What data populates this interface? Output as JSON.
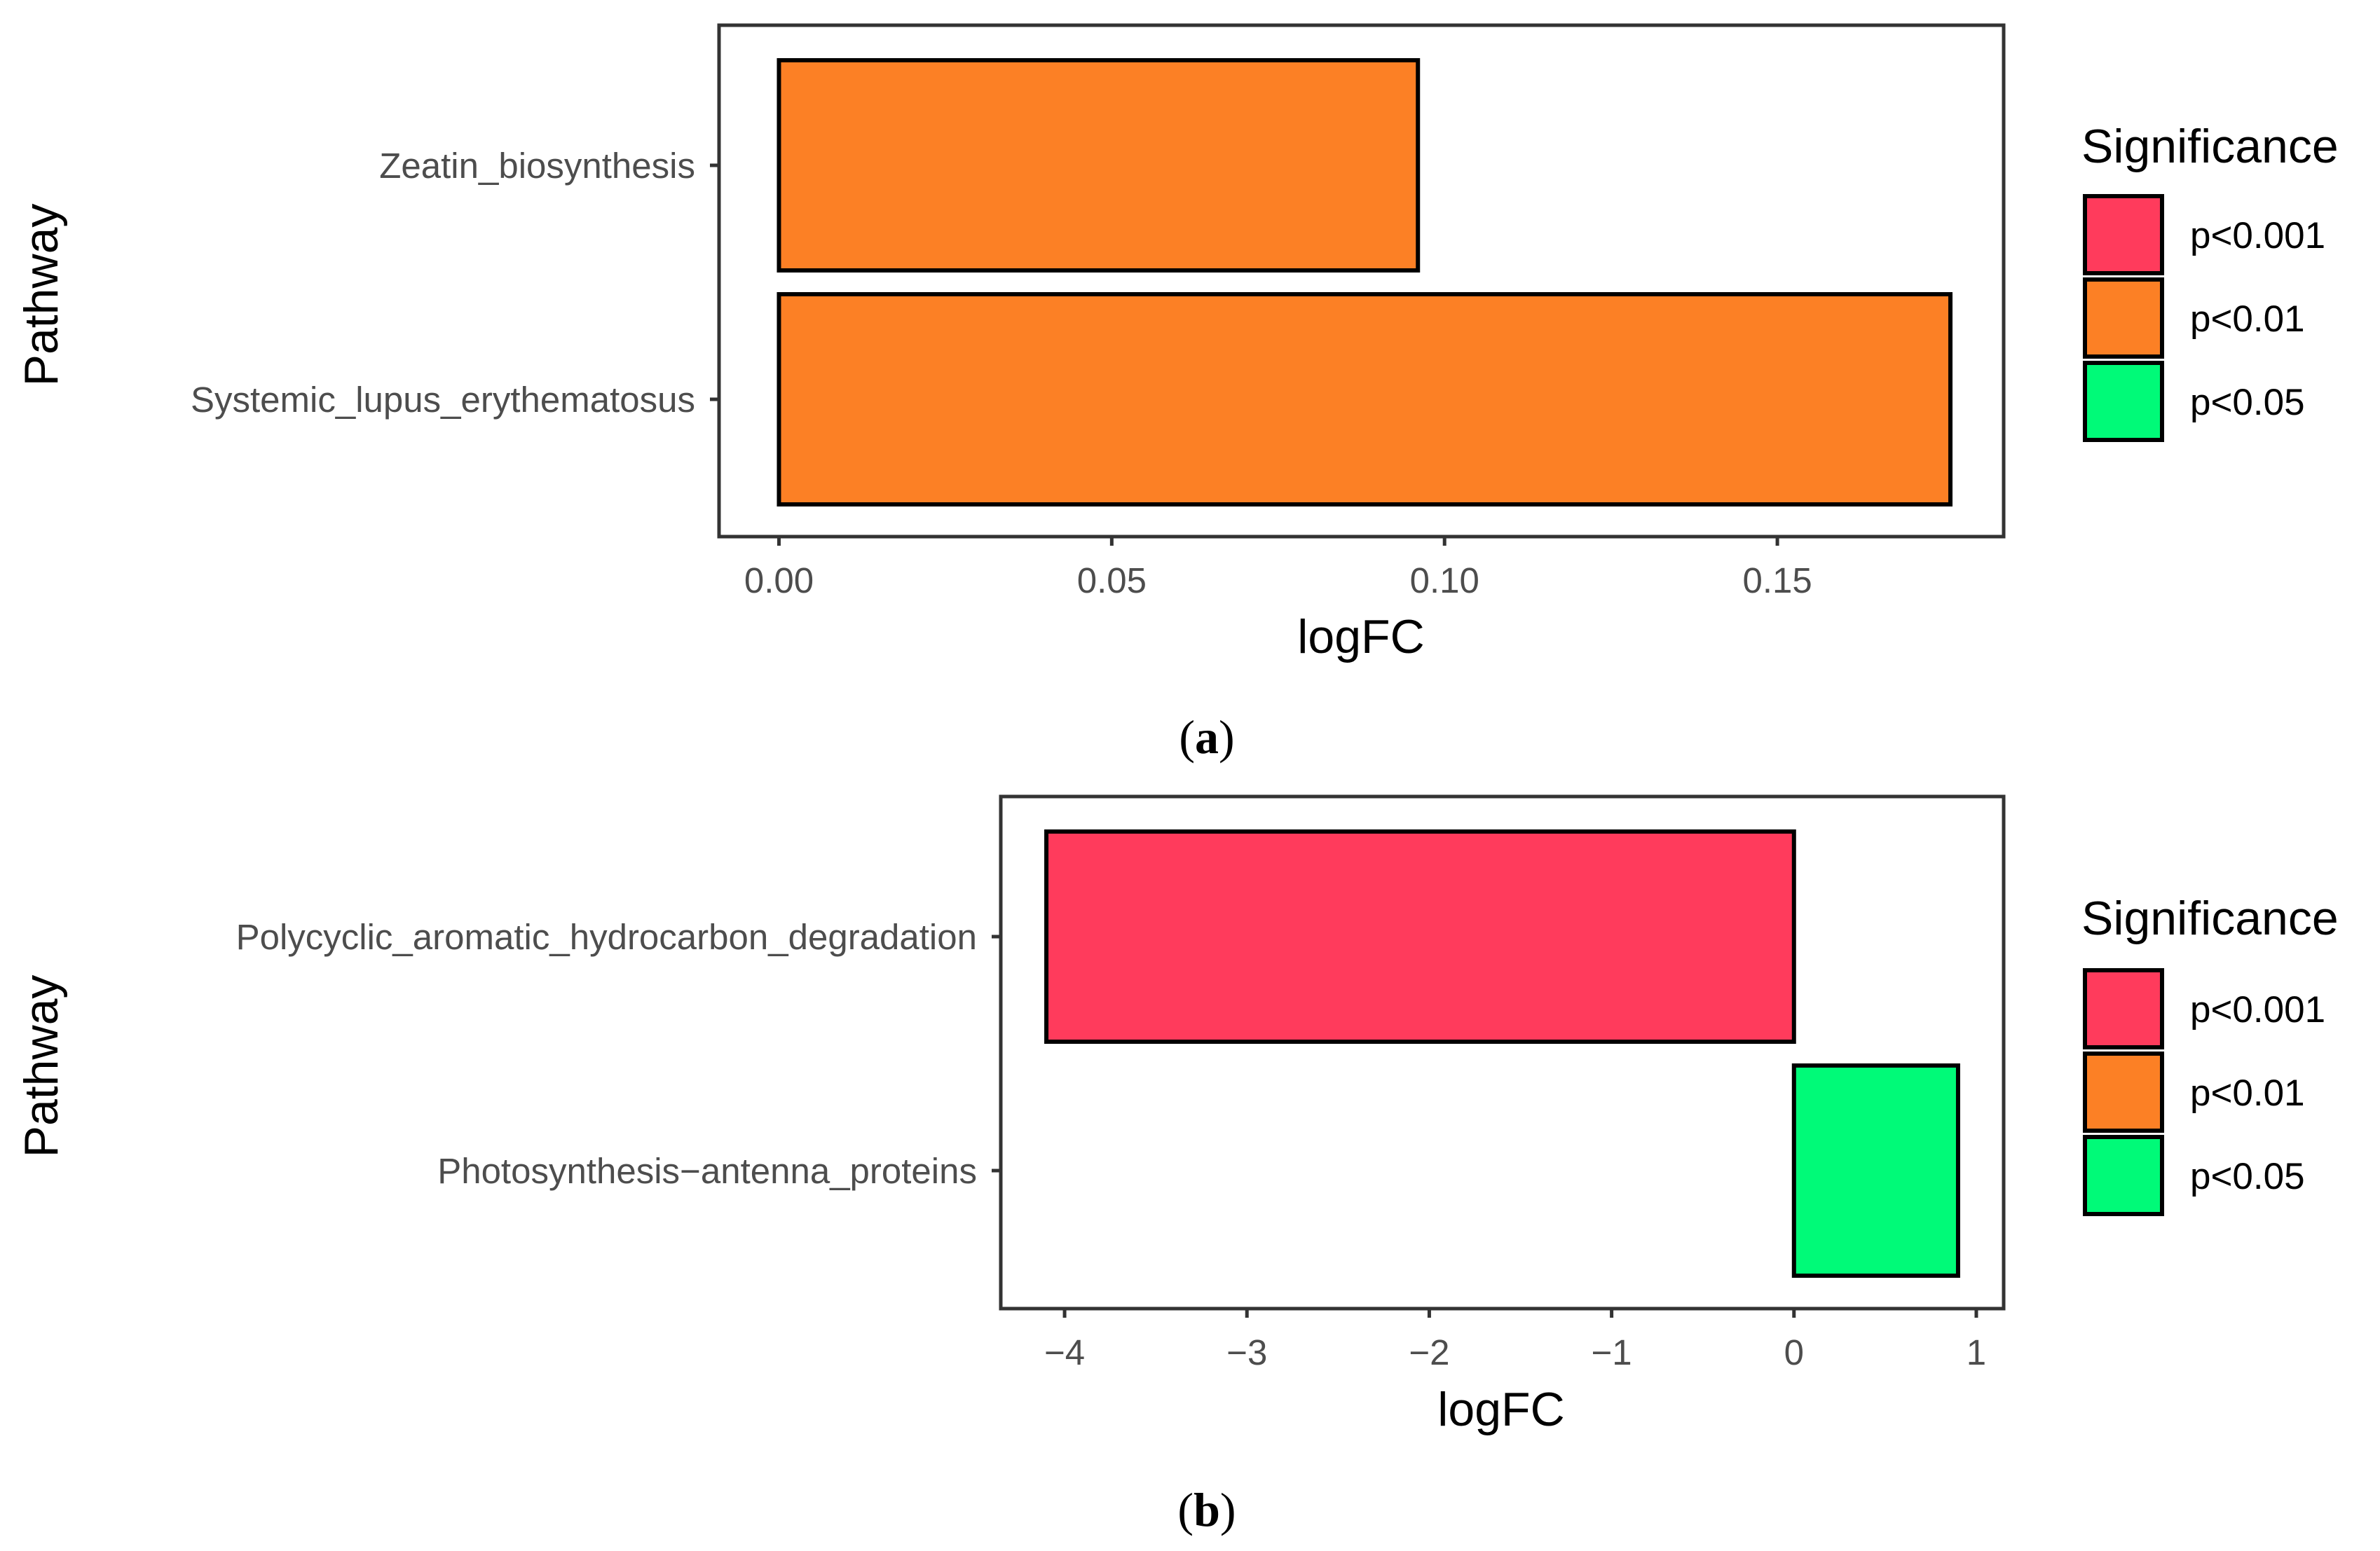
{
  "chart_data": [
    {
      "type": "bar",
      "orientation": "horizontal",
      "caption": "a",
      "categories": [
        "Zeatin_biosynthesis",
        "Systemic_lupus_erythematosus"
      ],
      "values": [
        0.096,
        0.176
      ],
      "significance": [
        "p<0.01",
        "p<0.01"
      ],
      "xlabel": "logFC",
      "ylabel": "Pathway",
      "xlim": [
        -0.009,
        0.184
      ],
      "xticks": [
        0.0,
        0.05,
        0.1,
        0.15
      ],
      "xtick_labels": [
        "0.00",
        "0.05",
        "0.10",
        "0.15"
      ],
      "legend": {
        "title": "Significance",
        "placement": "right",
        "items": [
          {
            "label": "p<0.001",
            "color": "#FF3B5C"
          },
          {
            "label": "p<0.01",
            "color": "#FC8025"
          },
          {
            "label": "p<0.05",
            "color": "#00FA78"
          }
        ]
      },
      "grid": false
    },
    {
      "type": "bar",
      "orientation": "horizontal",
      "caption": "b",
      "categories": [
        "Polycyclic_aromatic_hydrocarbon_degradation",
        "Photosynthesis−antenna_proteins"
      ],
      "values": [
        -4.1,
        0.9
      ],
      "significance": [
        "p<0.001",
        "p<0.05"
      ],
      "xlabel": "logFC",
      "ylabel": "Pathway",
      "xlim": [
        -4.35,
        1.15
      ],
      "xticks": [
        -4,
        -3,
        -2,
        -1,
        0,
        1
      ],
      "xtick_labels": [
        "−4",
        "−3",
        "−2",
        "−1",
        "0",
        "1"
      ],
      "legend": {
        "title": "Significance",
        "placement": "right",
        "items": [
          {
            "label": "p<0.001",
            "color": "#FF3B5C"
          },
          {
            "label": "p<0.01",
            "color": "#FC8025"
          },
          {
            "label": "p<0.05",
            "color": "#00FA78"
          }
        ]
      },
      "grid": false
    }
  ]
}
